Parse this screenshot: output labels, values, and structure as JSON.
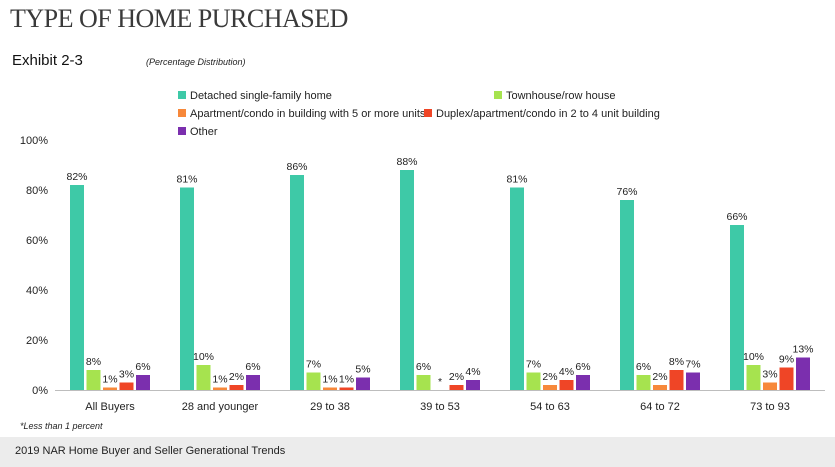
{
  "header": {
    "title": "TYPE OF HOME PURCHASED",
    "exhibit": "Exhibit 2-3",
    "subtitle": "(Percentage Distribution)"
  },
  "footnote": "*Less than 1 percent",
  "footer": {
    "text": "2019 NAR Home Buyer and Seller Generational Trends"
  },
  "chart_data": {
    "type": "bar",
    "categories": [
      "All Buyers",
      "28 and younger",
      "29 to 38",
      "39 to 53",
      "54 to 63",
      "64 to 72",
      "73 to 93"
    ],
    "series": [
      {
        "name": "Detached single-family home",
        "color": "#3ec9a7",
        "values": [
          82,
          81,
          86,
          88,
          81,
          76,
          66
        ],
        "labels": [
          "82%",
          "81%",
          "86%",
          "88%",
          "81%",
          "76%",
          "66%"
        ]
      },
      {
        "name": "Townhouse/row house",
        "color": "#a6e34f",
        "values": [
          8,
          10,
          7,
          6,
          7,
          6,
          10
        ],
        "labels": [
          "8%",
          "10%",
          "7%",
          "6%",
          "7%",
          "6%",
          "10%"
        ]
      },
      {
        "name": "Apartment/condo in building with 5 or more units",
        "color": "#f7883a",
        "values": [
          1,
          1,
          1,
          0,
          2,
          2,
          3
        ],
        "labels": [
          "1%",
          "1%",
          "1%",
          "*",
          "2%",
          "2%",
          "3%"
        ]
      },
      {
        "name": "Duplex/apartment/condo in 2 to 4 unit building",
        "color": "#ef4526",
        "values": [
          3,
          2,
          1,
          2,
          4,
          8,
          9
        ],
        "labels": [
          "3%",
          "2%",
          "1%",
          "2%",
          "4%",
          "8%",
          "9%"
        ]
      },
      {
        "name": "Other",
        "color": "#7b2fae",
        "values": [
          6,
          6,
          5,
          4,
          6,
          7,
          13
        ],
        "labels": [
          "6%",
          "6%",
          "5%",
          "4%",
          "6%",
          "7%",
          "13%"
        ]
      }
    ],
    "yticks": [
      "0%",
      "20%",
      "40%",
      "60%",
      "80%",
      "100%"
    ],
    "ylim": [
      0,
      100
    ],
    "grid": false,
    "legend": "top"
  }
}
